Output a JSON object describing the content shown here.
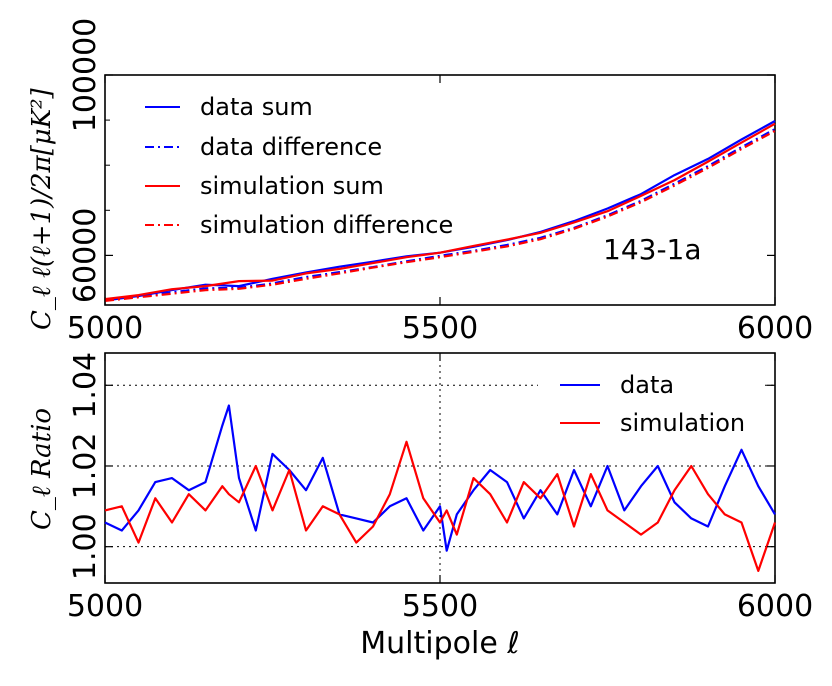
{
  "chart_data": [
    {
      "type": "line",
      "title": "",
      "annotation": "143-1a",
      "xlabel": "",
      "ylabel": "C_ℓ ℓ(ℓ+1)/2π[μK²]",
      "xlim": [
        5000,
        6000
      ],
      "ylim": [
        49000,
        100000
      ],
      "xticks": [
        "5000",
        "5500",
        "6000"
      ],
      "yticks": [
        "60000",
        "100000"
      ],
      "ytick_values": [
        60000,
        100000
      ],
      "minor_yticks": [
        70000,
        80000,
        90000
      ],
      "legend_position": "upper-left",
      "x": [
        5000,
        5050,
        5100,
        5150,
        5200,
        5250,
        5300,
        5350,
        5400,
        5450,
        5500,
        5550,
        5600,
        5650,
        5700,
        5750,
        5800,
        5850,
        5900,
        5950,
        6000
      ],
      "series": [
        {
          "name": "data sum",
          "color": "#0000ff",
          "style": "solid",
          "values": [
            50000,
            51000,
            52300,
            53500,
            53200,
            54800,
            56200,
            57500,
            58600,
            59800,
            60600,
            61900,
            63400,
            65200,
            67600,
            70400,
            73600,
            77800,
            81400,
            85700,
            89800
          ]
        },
        {
          "name": "data difference",
          "color": "#0000ff",
          "style": "dashdot",
          "values": [
            50000,
            50900,
            51800,
            52700,
            52800,
            53800,
            55200,
            56300,
            57400,
            58700,
            59900,
            61000,
            62300,
            63900,
            66100,
            68900,
            72100,
            75900,
            79800,
            84000,
            88000
          ]
        },
        {
          "name": "simulation sum",
          "color": "#ff0000",
          "style": "solid",
          "values": [
            50300,
            51200,
            52500,
            53200,
            54300,
            54400,
            56000,
            57000,
            58300,
            59600,
            60600,
            62100,
            63500,
            65000,
            67300,
            69800,
            73200,
            76700,
            80800,
            85000,
            89200
          ]
        },
        {
          "name": "simulation difference",
          "color": "#ff0000",
          "style": "dashdot",
          "values": [
            49900,
            50700,
            51500,
            52300,
            52600,
            53500,
            54800,
            56000,
            57300,
            58500,
            59600,
            60800,
            62000,
            63600,
            65900,
            68600,
            71800,
            75500,
            79400,
            83600,
            87600
          ]
        }
      ]
    },
    {
      "type": "line",
      "title": "",
      "xlabel": "Multipole ℓ",
      "ylabel": "C_ℓ Ratio",
      "xlim": [
        5000,
        6000
      ],
      "ylim": [
        0.991,
        1.048
      ],
      "xticks": [
        "5000",
        "5500",
        "6000"
      ],
      "yticks": [
        "1.00",
        "1.02",
        "1.04"
      ],
      "ytick_values": [
        1.0,
        1.02,
        1.04
      ],
      "grid": "dotted",
      "legend_position": "upper-right",
      "x": [
        5000,
        5025,
        5050,
        5075,
        5100,
        5125,
        5150,
        5175,
        5185,
        5200,
        5225,
        5250,
        5275,
        5300,
        5325,
        5350,
        5375,
        5400,
        5425,
        5450,
        5475,
        5500,
        5510,
        5525,
        5550,
        5575,
        5600,
        5625,
        5650,
        5675,
        5700,
        5725,
        5750,
        5775,
        5800,
        5825,
        5850,
        5875,
        5900,
        5925,
        5950,
        5975,
        6000
      ],
      "series": [
        {
          "name": "data",
          "color": "#0000ff",
          "style": "solid",
          "values": [
            1.006,
            1.004,
            1.009,
            1.016,
            1.017,
            1.014,
            1.016,
            1.03,
            1.035,
            1.017,
            1.004,
            1.023,
            1.019,
            1.014,
            1.022,
            1.008,
            1.007,
            1.006,
            1.01,
            1.012,
            1.004,
            1.01,
            0.999,
            1.008,
            1.014,
            1.019,
            1.016,
            1.007,
            1.014,
            1.008,
            1.019,
            1.01,
            1.02,
            1.009,
            1.015,
            1.02,
            1.011,
            1.007,
            1.005,
            1.015,
            1.024,
            1.015,
            1.008
          ]
        },
        {
          "name": "simulation",
          "color": "#ff0000",
          "style": "solid",
          "values": [
            1.009,
            1.01,
            1.001,
            1.012,
            1.006,
            1.013,
            1.009,
            1.015,
            1.013,
            1.011,
            1.02,
            1.009,
            1.019,
            1.004,
            1.01,
            1.008,
            1.001,
            1.005,
            1.013,
            1.026,
            1.012,
            1.006,
            1.009,
            1.003,
            1.017,
            1.013,
            1.006,
            1.016,
            1.012,
            1.018,
            1.005,
            1.018,
            1.009,
            1.006,
            1.003,
            1.006,
            1.014,
            1.02,
            1.013,
            1.008,
            1.006,
            0.994,
            1.006
          ]
        }
      ]
    }
  ]
}
